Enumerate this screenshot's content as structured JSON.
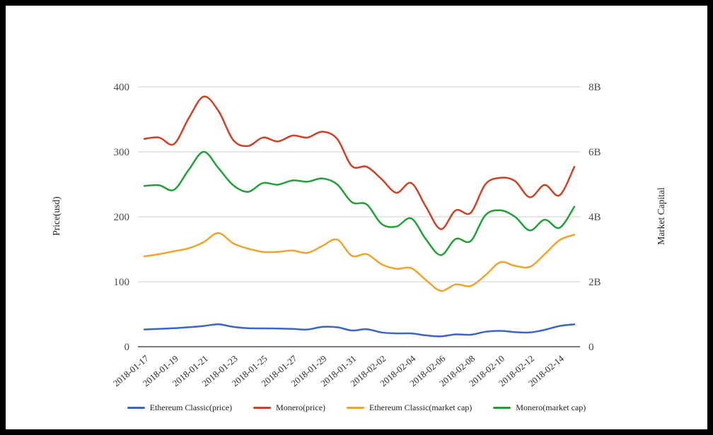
{
  "frame": {
    "border_color": "#000000",
    "background": "#ffffff"
  },
  "chart_data": {
    "type": "line",
    "smooth": true,
    "grid": true,
    "grid_color": "#cccccc",
    "baseline_color": "#2b2b2b",
    "legend_position": "bottom",
    "x": [
      "2018-01-17",
      "2018-01-18",
      "2018-01-19",
      "2018-01-20",
      "2018-01-21",
      "2018-01-22",
      "2018-01-23",
      "2018-01-24",
      "2018-01-25",
      "2018-01-26",
      "2018-01-27",
      "2018-01-28",
      "2018-01-29",
      "2018-01-30",
      "2018-01-31",
      "2018-02-01",
      "2018-02-02",
      "2018-02-03",
      "2018-02-04",
      "2018-02-05",
      "2018-02-06",
      "2018-02-07",
      "2018-02-08",
      "2018-02-09",
      "2018-02-10",
      "2018-02-11",
      "2018-02-12",
      "2018-02-13",
      "2018-02-14",
      "2018-02-15"
    ],
    "x_label_every": 2,
    "left_axis": {
      "label": "Price(usd)",
      "range": [
        0,
        400
      ],
      "tick_values": [
        0,
        100,
        200,
        300,
        400
      ],
      "tick_labels": [
        "0",
        "100",
        "200",
        "300",
        "400"
      ]
    },
    "right_axis": {
      "label": "Market Capital",
      "range": [
        0,
        8
      ],
      "tick_values": [
        0,
        2,
        4,
        6,
        8
      ],
      "tick_labels": [
        "0",
        "2B",
        "4B",
        "6B",
        "8B"
      ]
    },
    "series": [
      {
        "name": "Ethereum Classic(price)",
        "axis": "left",
        "color": "#3a66c4",
        "values": [
          26.5,
          27.5,
          28.5,
          30,
          32,
          34.5,
          30.5,
          28.5,
          28.3,
          28,
          27.5,
          26.5,
          30.5,
          30,
          25,
          27,
          22,
          20.5,
          20.5,
          17.5,
          16,
          19,
          18.5,
          23,
          24.5,
          22.5,
          22,
          26,
          32,
          34.5
        ]
      },
      {
        "name": "Monero(price)",
        "axis": "left",
        "color": "#cf4125",
        "values": [
          320,
          322,
          312,
          352,
          385,
          363,
          318,
          309,
          322,
          316,
          325,
          322,
          331,
          320,
          278,
          277,
          258,
          237,
          252,
          215,
          181,
          210,
          206,
          250,
          260,
          255,
          230,
          249,
          233,
          277
        ]
      },
      {
        "name": "Ethereum Classic(market cap)",
        "axis": "right",
        "color": "#f0a42c",
        "values": [
          2.78,
          2.85,
          2.94,
          3.03,
          3.22,
          3.5,
          3.18,
          3.02,
          2.92,
          2.92,
          2.96,
          2.89,
          3.1,
          3.3,
          2.8,
          2.85,
          2.54,
          2.4,
          2.42,
          2.05,
          1.72,
          1.92,
          1.87,
          2.2,
          2.6,
          2.49,
          2.46,
          2.85,
          3.28,
          3.45
        ]
      },
      {
        "name": "Monero(market cap)",
        "axis": "right",
        "color": "#21a038",
        "values": [
          4.95,
          4.97,
          4.83,
          5.45,
          6.0,
          5.5,
          4.97,
          4.77,
          5.04,
          4.99,
          5.12,
          5.08,
          5.18,
          5.0,
          4.45,
          4.38,
          3.78,
          3.7,
          3.95,
          3.3,
          2.82,
          3.32,
          3.25,
          4.05,
          4.2,
          4.0,
          3.58,
          3.91,
          3.66,
          4.31
        ]
      }
    ]
  }
}
